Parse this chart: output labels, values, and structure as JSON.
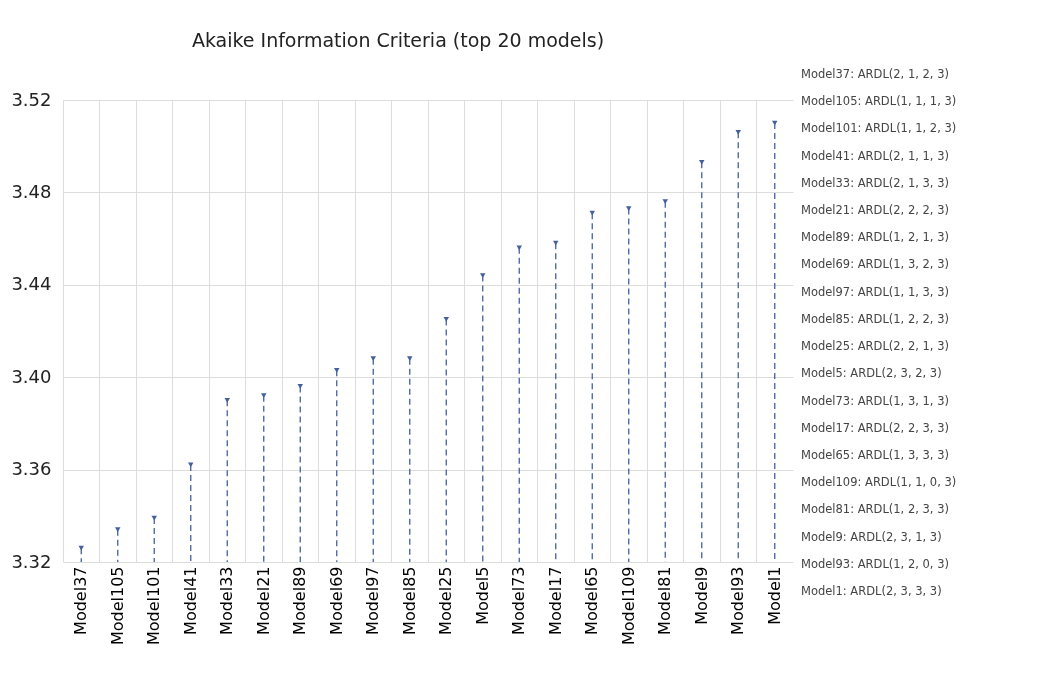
{
  "chart_data": {
    "type": "lollipop",
    "title": "Akaike Information Criteria (top 20 models)",
    "categories": [
      "Model37",
      "Model105",
      "Model101",
      "Model41",
      "Model33",
      "Model21",
      "Model89",
      "Model69",
      "Model97",
      "Model85",
      "Model25",
      "Model5",
      "Model73",
      "Model17",
      "Model65",
      "Model109",
      "Model81",
      "Model9",
      "Model93",
      "Model1"
    ],
    "values": [
      3.326,
      3.334,
      3.339,
      3.362,
      3.39,
      3.392,
      3.396,
      3.403,
      3.408,
      3.408,
      3.425,
      3.444,
      3.456,
      3.458,
      3.471,
      3.473,
      3.476,
      3.493,
      3.506,
      3.51
    ],
    "color": "#44609c",
    "ylim": [
      3.32,
      3.52
    ],
    "yticks": [
      3.32,
      3.36,
      {
        "value": 3.4,
        "label": "3.40"
      },
      3.44,
      3.48,
      3.52
    ],
    "grid": true,
    "marker": "triangle",
    "line_style": "dashed",
    "annotations": [
      "Model37: ARDL(2, 1, 2, 3)",
      "Model105: ARDL(1, 1, 1, 3)",
      "Model101: ARDL(1, 1, 2, 3)",
      "Model41: ARDL(2, 1, 1, 3)",
      "Model33: ARDL(2, 1, 3, 3)",
      "Model21: ARDL(2, 2, 2, 3)",
      "Model89: ARDL(1, 2, 1, 3)",
      "Model69: ARDL(1, 3, 2, 3)",
      "Model97: ARDL(1, 1, 3, 3)",
      "Model85: ARDL(1, 2, 2, 3)",
      "Model25: ARDL(2, 2, 1, 3)",
      "Model5: ARDL(2, 3, 2, 3)",
      "Model73: ARDL(1, 3, 1, 3)",
      "Model17: ARDL(2, 2, 3, 3)",
      "Model65: ARDL(1, 3, 3, 3)",
      "Model109: ARDL(1, 1, 0, 3)",
      "Model81: ARDL(1, 2, 3, 3)",
      "Model9: ARDL(2, 3, 1, 3)",
      "Model93: ARDL(1, 2, 0, 3)",
      "Model1: ARDL(2, 3, 3, 3)"
    ]
  }
}
